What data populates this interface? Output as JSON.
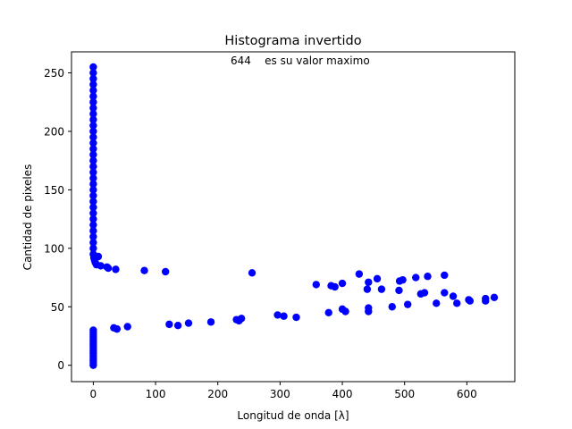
{
  "chart_data": {
    "type": "scatter",
    "title": "Histograma invertido",
    "annotation": "644    es su valor maximo",
    "xlabel": "Longitud de onda [λ]",
    "ylabel": "Cantidad de pixeles",
    "xlim": [
      -35,
      677
    ],
    "ylim": [
      -14,
      268
    ],
    "xticks": [
      0,
      100,
      200,
      300,
      400,
      500,
      600
    ],
    "yticks": [
      0,
      50,
      100,
      150,
      200,
      250
    ],
    "grid": false,
    "marker_color": "#0000ff",
    "series": [
      {
        "points": [
          [
            0,
            0
          ],
          [
            0,
            2
          ],
          [
            0,
            4
          ],
          [
            0,
            6
          ],
          [
            0,
            8
          ],
          [
            0,
            10
          ],
          [
            0,
            12
          ],
          [
            0,
            14
          ],
          [
            0,
            16
          ],
          [
            0,
            18
          ],
          [
            0,
            20
          ],
          [
            0,
            22
          ],
          [
            0,
            24
          ],
          [
            0,
            26
          ],
          [
            0,
            28
          ],
          [
            0,
            30
          ],
          [
            0,
            95
          ],
          [
            0,
            100
          ],
          [
            0,
            105
          ],
          [
            0,
            110
          ],
          [
            0,
            115
          ],
          [
            0,
            120
          ],
          [
            0,
            125
          ],
          [
            0,
            130
          ],
          [
            0,
            135
          ],
          [
            0,
            140
          ],
          [
            0,
            145
          ],
          [
            0,
            150
          ],
          [
            0,
            155
          ],
          [
            0,
            160
          ],
          [
            0,
            165
          ],
          [
            0,
            170
          ],
          [
            0,
            175
          ],
          [
            0,
            180
          ],
          [
            0,
            185
          ],
          [
            0,
            190
          ],
          [
            0,
            195
          ],
          [
            0,
            200
          ],
          [
            0,
            205
          ],
          [
            0,
            210
          ],
          [
            0,
            215
          ],
          [
            0,
            220
          ],
          [
            0,
            225
          ],
          [
            0,
            230
          ],
          [
            0,
            235
          ],
          [
            0,
            240
          ],
          [
            0,
            245
          ],
          [
            0,
            250
          ],
          [
            0,
            255
          ],
          [
            1,
            92
          ],
          [
            2,
            90
          ],
          [
            3,
            88
          ],
          [
            5,
            86
          ],
          [
            8,
            93
          ],
          [
            12,
            85
          ],
          [
            22,
            84
          ],
          [
            24,
            83
          ],
          [
            36,
            82
          ],
          [
            82,
            81
          ],
          [
            116,
            80
          ],
          [
            255,
            79
          ],
          [
            33,
            32
          ],
          [
            38,
            31
          ],
          [
            55,
            33
          ],
          [
            122,
            35
          ],
          [
            136,
            34
          ],
          [
            153,
            36
          ],
          [
            189,
            37
          ],
          [
            230,
            39
          ],
          [
            234,
            38
          ],
          [
            238,
            40
          ],
          [
            296,
            43
          ],
          [
            306,
            42
          ],
          [
            326,
            41
          ],
          [
            358,
            69
          ],
          [
            378,
            45
          ],
          [
            382,
            68
          ],
          [
            388,
            67
          ],
          [
            400,
            70
          ],
          [
            400,
            48
          ],
          [
            405,
            46
          ],
          [
            427,
            78
          ],
          [
            440,
            65
          ],
          [
            442,
            71
          ],
          [
            442,
            46
          ],
          [
            442,
            49
          ],
          [
            456,
            74
          ],
          [
            463,
            65
          ],
          [
            480,
            50
          ],
          [
            491,
            64
          ],
          [
            492,
            72
          ],
          [
            497,
            73
          ],
          [
            505,
            52
          ],
          [
            518,
            75
          ],
          [
            526,
            61
          ],
          [
            532,
            62
          ],
          [
            537,
            76
          ],
          [
            551,
            53
          ],
          [
            564,
            77
          ],
          [
            564,
            62
          ],
          [
            578,
            59
          ],
          [
            584,
            53
          ],
          [
            603,
            56
          ],
          [
            605,
            55
          ],
          [
            630,
            57
          ],
          [
            630,
            55
          ],
          [
            644,
            58
          ]
        ]
      }
    ]
  }
}
